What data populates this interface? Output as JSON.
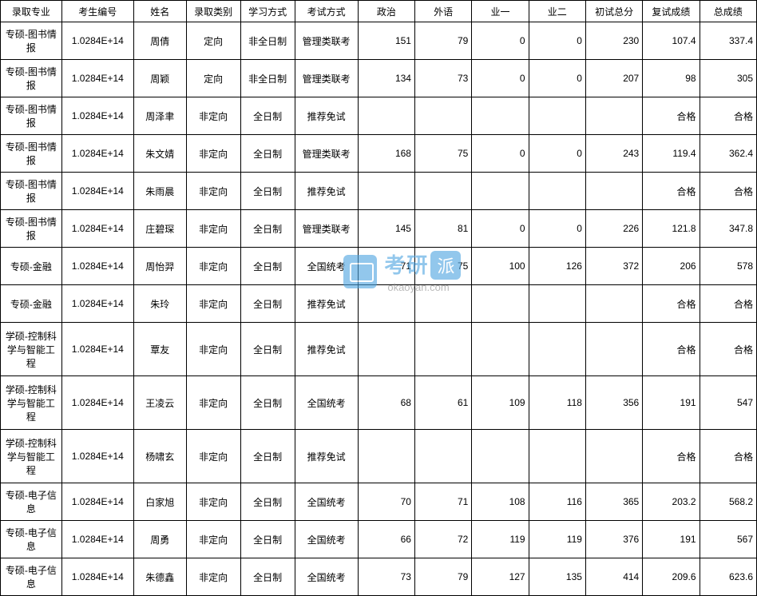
{
  "table": {
    "columns": [
      "录取专业",
      "考生编号",
      "姓名",
      "录取类别",
      "学习方式",
      "考试方式",
      "政治",
      "外语",
      "业一",
      "业二",
      "初试总分",
      "复试成绩",
      "总成绩"
    ],
    "column_classes": [
      "col-major",
      "col-id",
      "col-name",
      "col-type",
      "col-study",
      "col-exam",
      "col-num",
      "col-num",
      "col-num",
      "col-num",
      "col-num",
      "col-num2",
      "col-num2"
    ],
    "rows": [
      {
        "h": "h2",
        "c": [
          "专硕-图书情报",
          "1.0284E+14",
          "周倩",
          "定向",
          "非全日制",
          "管理类联考",
          "151",
          "79",
          "0",
          "0",
          "230",
          "107.4",
          "337.4"
        ]
      },
      {
        "h": "h2",
        "c": [
          "专硕-图书情报",
          "1.0284E+14",
          "周颖",
          "定向",
          "非全日制",
          "管理类联考",
          "134",
          "73",
          "0",
          "0",
          "207",
          "98",
          "305"
        ]
      },
      {
        "h": "h2",
        "c": [
          "专硕-图书情报",
          "1.0284E+14",
          "周泽聿",
          "非定向",
          "全日制",
          "推荐免试",
          "",
          "",
          "",
          "",
          "",
          "合格",
          "合格"
        ]
      },
      {
        "h": "h2",
        "c": [
          "专硕-图书情报",
          "1.0284E+14",
          "朱文婧",
          "非定向",
          "全日制",
          "管理类联考",
          "168",
          "75",
          "0",
          "0",
          "243",
          "119.4",
          "362.4"
        ]
      },
      {
        "h": "h2",
        "c": [
          "专硕-图书情报",
          "1.0284E+14",
          "朱雨晨",
          "非定向",
          "全日制",
          "推荐免试",
          "",
          "",
          "",
          "",
          "",
          "合格",
          "合格"
        ]
      },
      {
        "h": "h2",
        "c": [
          "专硕-图书情报",
          "1.0284E+14",
          "庄碧琛",
          "非定向",
          "全日制",
          "管理类联考",
          "145",
          "81",
          "0",
          "0",
          "226",
          "121.8",
          "347.8"
        ]
      },
      {
        "h": "h2",
        "c": [
          "专硕-金融",
          "1.0284E+14",
          "周怡羿",
          "非定向",
          "全日制",
          "全国统考",
          "71",
          "75",
          "100",
          "126",
          "372",
          "206",
          "578"
        ]
      },
      {
        "h": "h2",
        "c": [
          "专硕-金融",
          "1.0284E+14",
          "朱玲",
          "非定向",
          "全日制",
          "推荐免试",
          "",
          "",
          "",
          "",
          "",
          "合格",
          "合格"
        ]
      },
      {
        "h": "h3",
        "c": [
          "学硕-控制科学与智能工程",
          "1.0284E+14",
          "覃友",
          "非定向",
          "全日制",
          "推荐免试",
          "",
          "",
          "",
          "",
          "",
          "合格",
          "合格"
        ]
      },
      {
        "h": "h3",
        "c": [
          "学硕-控制科学与智能工程",
          "1.0284E+14",
          "王凌云",
          "非定向",
          "全日制",
          "全国统考",
          "68",
          "61",
          "109",
          "118",
          "356",
          "191",
          "547"
        ]
      },
      {
        "h": "h3",
        "c": [
          "学硕-控制科学与智能工程",
          "1.0284E+14",
          "杨啸玄",
          "非定向",
          "全日制",
          "推荐免试",
          "",
          "",
          "",
          "",
          "",
          "合格",
          "合格"
        ]
      },
      {
        "h": "h2",
        "c": [
          "专硕-电子信息",
          "1.0284E+14",
          "白家旭",
          "非定向",
          "全日制",
          "全国统考",
          "70",
          "71",
          "108",
          "116",
          "365",
          "203.2",
          "568.2"
        ]
      },
      {
        "h": "h2",
        "c": [
          "专硕-电子信息",
          "1.0284E+14",
          "周勇",
          "非定向",
          "全日制",
          "全国统考",
          "66",
          "72",
          "119",
          "119",
          "376",
          "191",
          "567"
        ]
      },
      {
        "h": "h2",
        "c": [
          "专硕-电子信息",
          "1.0284E+14",
          "朱德鑫",
          "非定向",
          "全日制",
          "全国统考",
          "73",
          "79",
          "127",
          "135",
          "414",
          "209.6",
          "623.6"
        ]
      }
    ],
    "text_cols": [
      0,
      1,
      2,
      3,
      4,
      5
    ],
    "num_cols": [
      6,
      7,
      8,
      9,
      10,
      11,
      12
    ]
  },
  "watermark": {
    "cn": "考研",
    "pill": "派",
    "url": "okaoyan.com"
  },
  "style": {
    "border_color": "#000000",
    "background": "#ffffff",
    "font_size_pt": 9,
    "wm_blue": "#4aa3e0",
    "wm_gray": "#8a8a8a"
  }
}
